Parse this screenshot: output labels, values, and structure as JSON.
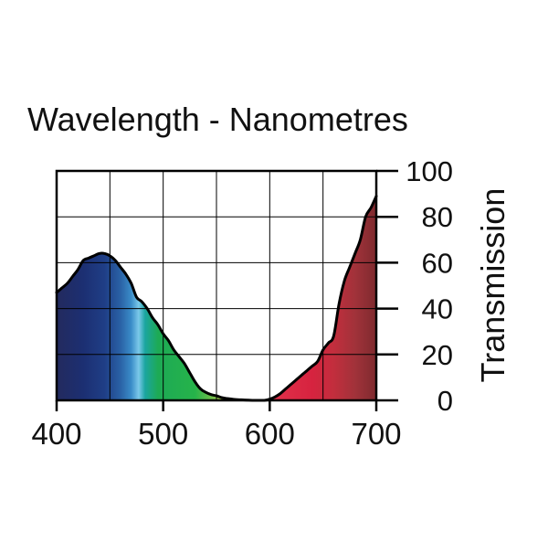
{
  "chart_data": {
    "type": "area",
    "title": "Wavelength - Nanometres",
    "xlabel": "",
    "ylabel": "Transmission",
    "xlim": [
      400,
      700
    ],
    "ylim": [
      0,
      100
    ],
    "grid": true,
    "x_ticks": [
      400,
      500,
      600,
      700
    ],
    "x_tick_labels": [
      "400",
      "500",
      "600",
      "700"
    ],
    "y_ticks": [
      0,
      20,
      40,
      60,
      80,
      100
    ],
    "y_tick_labels": [
      "0",
      "20",
      "40",
      "60",
      "80",
      "100"
    ],
    "series": [
      {
        "name": "Transmission",
        "x": [
          400,
          405,
          410,
          415,
          420,
          425,
          430,
          435,
          440,
          445,
          450,
          455,
          460,
          465,
          470,
          475,
          480,
          485,
          490,
          495,
          500,
          505,
          510,
          515,
          520,
          525,
          530,
          535,
          540,
          545,
          550,
          555,
          560,
          565,
          570,
          575,
          580,
          585,
          590,
          595,
          600,
          605,
          610,
          615,
          620,
          625,
          630,
          635,
          640,
          645,
          650,
          655,
          660,
          665,
          670,
          675,
          680,
          685,
          690,
          695,
          700
        ],
        "y": [
          47,
          49,
          51,
          54,
          57,
          61,
          62,
          63,
          64,
          64,
          63,
          61,
          58,
          55,
          51,
          45,
          43,
          40,
          36,
          33,
          29,
          26,
          22,
          19,
          16,
          12,
          8,
          5,
          3.5,
          2.5,
          2,
          1.2,
          0.8,
          0.5,
          0.3,
          0.2,
          0.1,
          0,
          0,
          0,
          0.5,
          1.5,
          3,
          5,
          7,
          9,
          11,
          13,
          15,
          17,
          22,
          25,
          28,
          42,
          52,
          58,
          64,
          70,
          80,
          84,
          89
        ]
      }
    ],
    "fill": "spectrum",
    "colors": {
      "outline": "#000000",
      "grid": "#000000",
      "axis": "#000000"
    },
    "spectrum_stops": [
      {
        "nm": 400,
        "color": "#232a5e"
      },
      {
        "nm": 425,
        "color": "#1c2f72"
      },
      {
        "nm": 445,
        "color": "#1f3e86"
      },
      {
        "nm": 460,
        "color": "#2a62a6"
      },
      {
        "nm": 470,
        "color": "#3a8cc8"
      },
      {
        "nm": 477,
        "color": "#7bc8ea"
      },
      {
        "nm": 483,
        "color": "#1ba5a0"
      },
      {
        "nm": 495,
        "color": "#1daa55"
      },
      {
        "nm": 530,
        "color": "#26b34a"
      },
      {
        "nm": 548,
        "color": "#7ac04a"
      },
      {
        "nm": 560,
        "color": "#c8cc52"
      },
      {
        "nm": 570,
        "color": "#c8b36a"
      },
      {
        "nm": 600,
        "color": "#e8a0a0"
      },
      {
        "nm": 605,
        "color": "#e0304a"
      },
      {
        "nm": 640,
        "color": "#d6233f"
      },
      {
        "nm": 660,
        "color": "#c22e3d"
      },
      {
        "nm": 680,
        "color": "#a1323a"
      },
      {
        "nm": 700,
        "color": "#7e2a2e"
      }
    ]
  }
}
